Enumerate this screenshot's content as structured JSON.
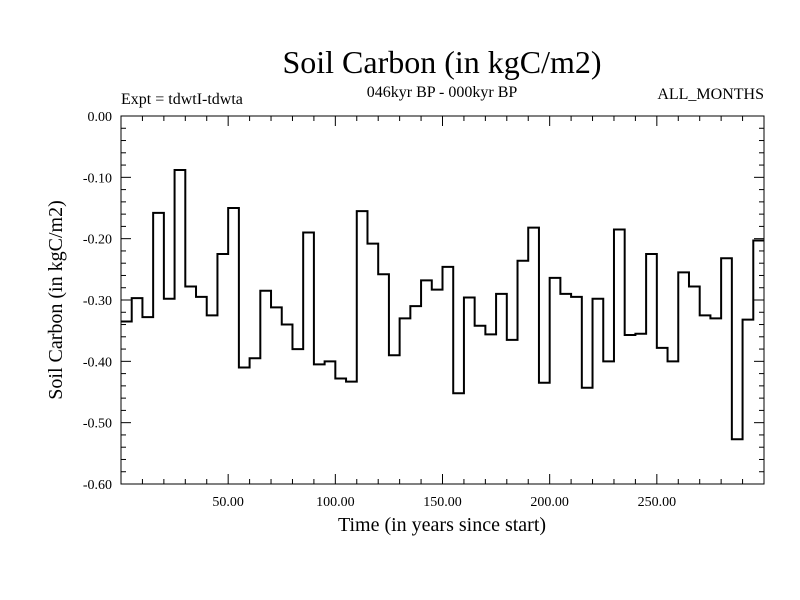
{
  "chart_data": {
    "type": "line",
    "step": true,
    "title": "Soil Carbon (in kgC/m2)",
    "subtitle_left": "Expt = tdwtI-tdwta",
    "subtitle_center": "046kyr BP - 000kyr BP",
    "subtitle_right": "ALL_MONTHS",
    "xlabel": "Time (in years since start)",
    "ylabel": "Soil Carbon (in kgC/m2)",
    "xlim": [
      0,
      300
    ],
    "ylim": [
      -0.6,
      0.0
    ],
    "x_ticks": [
      50,
      100,
      150,
      200,
      250
    ],
    "x_tick_labels": [
      "50.00",
      "100.00",
      "150.00",
      "200.00",
      "250.00"
    ],
    "y_ticks": [
      0.0,
      -0.1,
      -0.2,
      -0.3,
      -0.4,
      -0.5,
      -0.6
    ],
    "y_tick_labels": [
      "0.00",
      "-0.10",
      "-0.20",
      "-0.30",
      "-0.40",
      "-0.50",
      "-0.60"
    ],
    "series": [
      {
        "name": "Soil Carbon",
        "color": "#000000",
        "x": [
          0,
          5,
          10,
          15,
          20,
          25,
          30,
          35,
          40,
          45,
          50,
          55,
          60,
          65,
          70,
          75,
          80,
          85,
          90,
          95,
          100,
          105,
          110,
          115,
          120,
          125,
          130,
          135,
          140,
          145,
          150,
          155,
          160,
          165,
          170,
          175,
          180,
          185,
          190,
          195,
          200,
          205,
          210,
          215,
          220,
          225,
          230,
          235,
          240,
          245,
          250,
          255,
          260,
          265,
          270,
          275,
          280,
          285,
          290,
          295
        ],
        "values": [
          -0.335,
          -0.297,
          -0.328,
          -0.158,
          -0.298,
          -0.088,
          -0.278,
          -0.295,
          -0.325,
          -0.225,
          -0.15,
          -0.41,
          -0.395,
          -0.285,
          -0.312,
          -0.34,
          -0.38,
          -0.19,
          -0.405,
          -0.4,
          -0.428,
          -0.433,
          -0.155,
          -0.208,
          -0.258,
          -0.39,
          -0.33,
          -0.31,
          -0.268,
          -0.283,
          -0.246,
          -0.452,
          -0.296,
          -0.342,
          -0.356,
          -0.29,
          -0.365,
          -0.236,
          -0.182,
          -0.435,
          -0.264,
          -0.29,
          -0.295,
          -0.443,
          -0.298,
          -0.4,
          -0.185,
          -0.357,
          -0.355,
          -0.225,
          -0.378,
          -0.4,
          -0.255,
          -0.278,
          -0.325,
          -0.33,
          -0.232,
          -0.527,
          -0.332,
          -0.203
        ]
      }
    ]
  }
}
